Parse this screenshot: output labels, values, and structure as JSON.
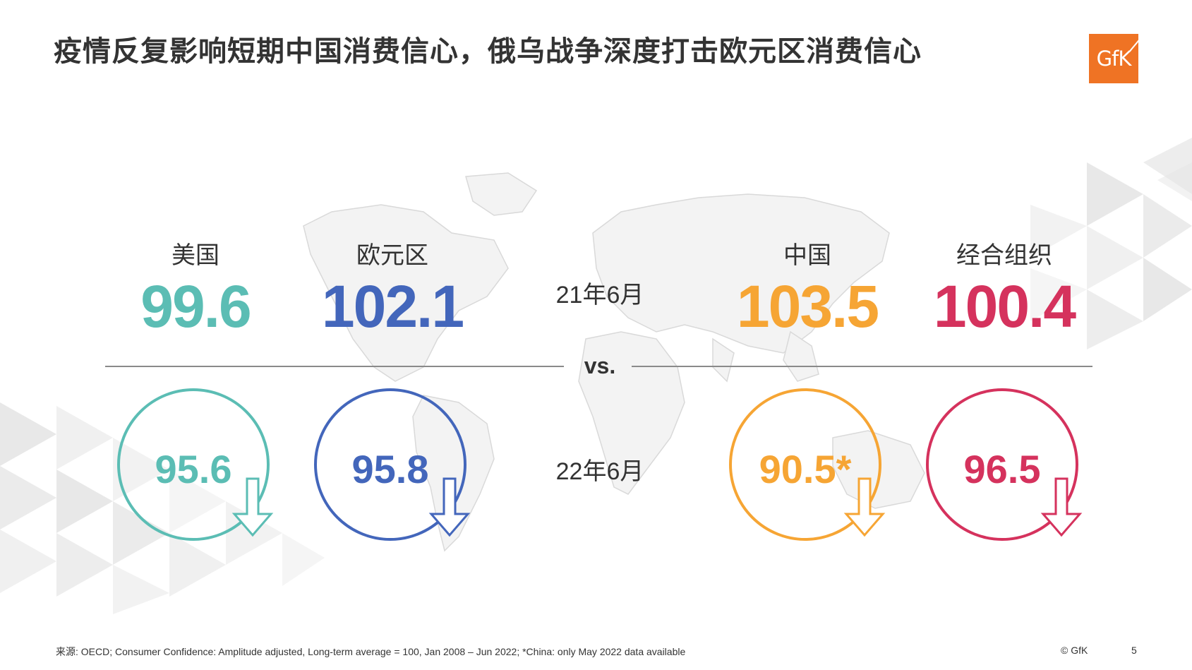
{
  "title": "疫情反复影响短期中国消费信心，俄乌战争深度打击欧元区消费信心",
  "logo": {
    "text": "GfK"
  },
  "colors": {
    "us": "#5bbdb4",
    "eurozone": "#4366bb",
    "china": "#f6a534",
    "oecd": "#d5325d"
  },
  "period_2021": "21年6月",
  "period_2022": "22年6月",
  "vs_label": "vs.",
  "regions": [
    {
      "key": "us",
      "name": "美国",
      "value_2021": "99.6",
      "value_2022": "95.6",
      "trend_icon": "arrow-down-icon"
    },
    {
      "key": "eurozone",
      "name": "欧元区",
      "value_2021": "102.1",
      "value_2022": "95.8",
      "trend_icon": "arrow-down-icon"
    },
    {
      "key": "china",
      "name": "中国",
      "value_2021": "103.5",
      "value_2022": "90.5*",
      "trend_icon": "arrow-down-icon"
    },
    {
      "key": "oecd",
      "name": "经合组织",
      "value_2021": "100.4",
      "value_2022": "96.5",
      "trend_icon": "arrow-down-icon"
    }
  ],
  "footer": {
    "source": "来源: OECD; Consumer Confidence: Amplitude adjusted, Long-term average = 100, Jan 2008 – Jun 2022;  *China: only May 2022 data  available",
    "copyright": "© GfK",
    "page_number": "5"
  }
}
